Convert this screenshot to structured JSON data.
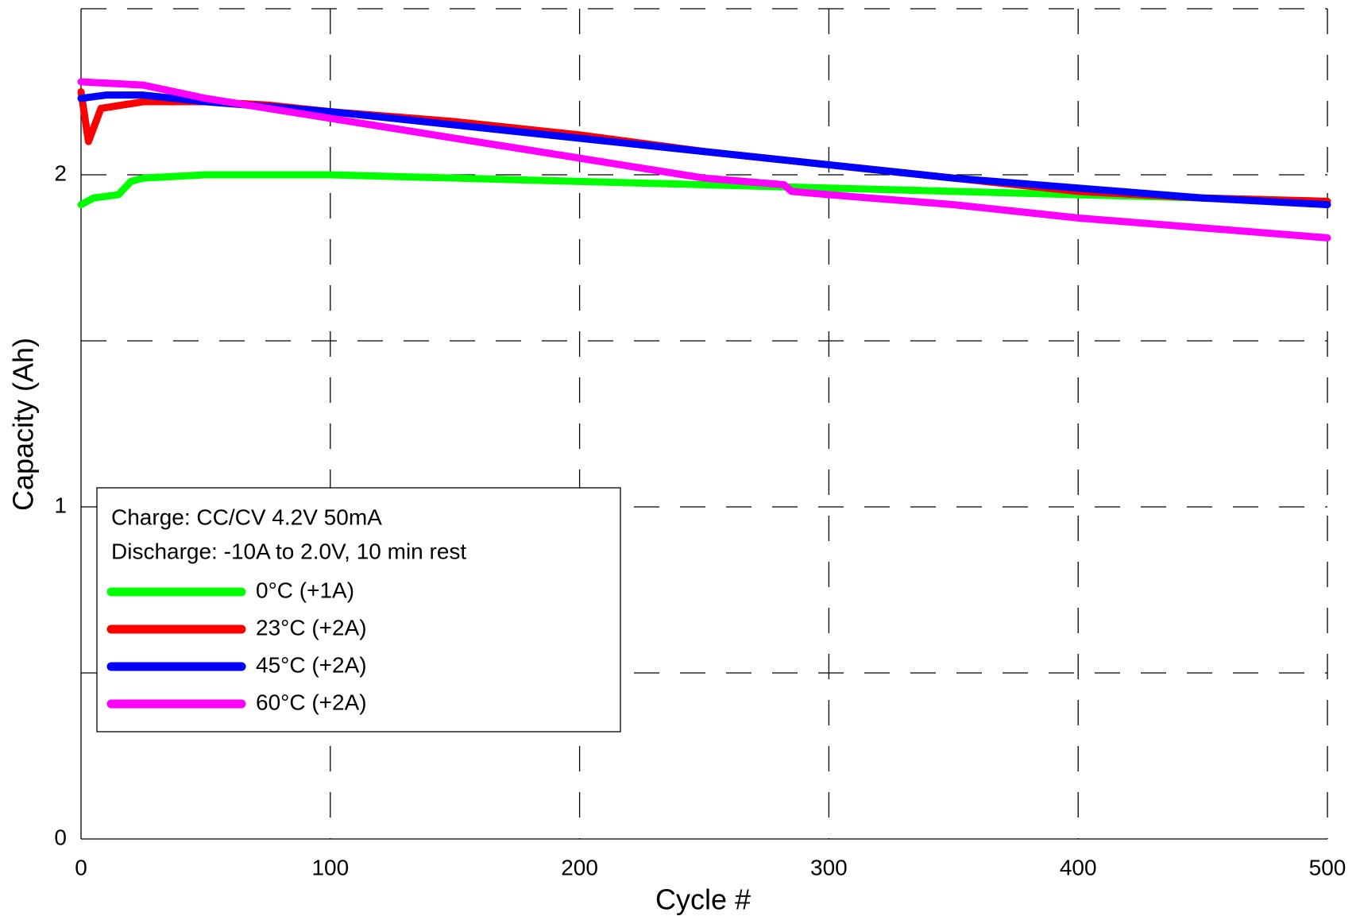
{
  "chart_data": {
    "type": "line",
    "xlabel": "Cycle #",
    "ylabel": "Capacity (Ah)",
    "annotations": [
      "Charge: CC/CV 4.2V 50mA",
      "Discharge: -10A to 2.0V, 10 min rest"
    ],
    "xlim": [
      0,
      500
    ],
    "xticks": [
      0,
      100,
      200,
      300,
      400,
      500
    ],
    "ylim": [
      0,
      2.5
    ],
    "yticks": [
      0,
      {
        "value": 0.5,
        "label": null
      },
      1,
      {
        "value": 1.5,
        "label": null
      },
      2,
      {
        "value": 2.5,
        "label": null
      }
    ],
    "grid": true,
    "legend": "lower left",
    "series": [
      {
        "name": "0°C (+1A)",
        "color": "#00ff00",
        "x": [
          0,
          5,
          15,
          20,
          25,
          50,
          75,
          100,
          150,
          200,
          250,
          300,
          350,
          400,
          450,
          500
        ],
        "values": [
          1.91,
          1.93,
          1.94,
          1.98,
          1.99,
          2.0,
          2.0,
          2.0,
          1.99,
          1.98,
          1.97,
          1.96,
          1.95,
          1.94,
          1.93,
          1.92
        ]
      },
      {
        "name": "23°C (+2A)",
        "color": "#ff0000",
        "x": [
          0,
          3,
          8,
          25,
          50,
          75,
          100,
          150,
          200,
          250,
          300,
          350,
          400,
          450,
          500
        ],
        "values": [
          2.25,
          2.1,
          2.2,
          2.22,
          2.22,
          2.21,
          2.19,
          2.16,
          2.12,
          2.07,
          2.03,
          1.99,
          1.95,
          1.93,
          1.92
        ]
      },
      {
        "name": "45°C (+2A)",
        "color": "#0000ff",
        "x": [
          0,
          10,
          25,
          50,
          100,
          150,
          200,
          250,
          300,
          350,
          400,
          450,
          500
        ],
        "values": [
          2.23,
          2.24,
          2.24,
          2.22,
          2.19,
          2.15,
          2.11,
          2.07,
          2.03,
          1.99,
          1.96,
          1.93,
          1.91
        ]
      },
      {
        "name": "60°C (+2A)",
        "color": "#ff00ff",
        "x": [
          0,
          25,
          50,
          75,
          100,
          150,
          200,
          250,
          282,
          285,
          300,
          350,
          400,
          450,
          500
        ],
        "values": [
          2.28,
          2.27,
          2.23,
          2.2,
          2.17,
          2.11,
          2.05,
          1.99,
          1.97,
          1.95,
          1.94,
          1.91,
          1.87,
          1.84,
          1.81
        ]
      }
    ]
  }
}
